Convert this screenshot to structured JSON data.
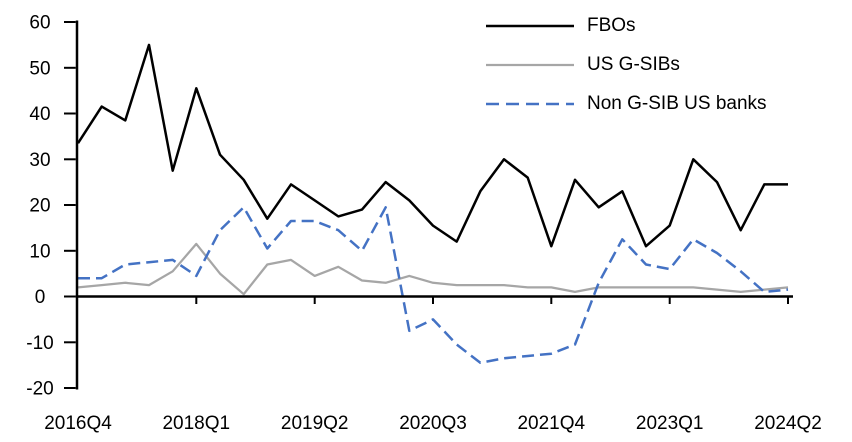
{
  "chart_data": {
    "type": "line",
    "title": "",
    "xlabel": "",
    "ylabel": "",
    "grid": false,
    "legend_position": "top-right",
    "background": "#ffffff",
    "axis_color": "#000000",
    "ylim": [
      -20,
      60
    ],
    "y_ticks": [
      60,
      50,
      40,
      30,
      20,
      10,
      0,
      -10,
      -20
    ],
    "x_ticks": [
      {
        "index": 0,
        "label": "2016Q4"
      },
      {
        "index": 5,
        "label": "2018Q1"
      },
      {
        "index": 10,
        "label": "2019Q2"
      },
      {
        "index": 15,
        "label": "2020Q3"
      },
      {
        "index": 20,
        "label": "2021Q4"
      },
      {
        "index": 25,
        "label": "2023Q1"
      },
      {
        "index": 30,
        "label": "2024Q2"
      }
    ],
    "categories": [
      "2016Q4",
      "2017Q1",
      "2017Q2",
      "2017Q3",
      "2017Q4",
      "2018Q1",
      "2018Q2",
      "2018Q3",
      "2018Q4",
      "2019Q1",
      "2019Q2",
      "2019Q3",
      "2019Q4",
      "2020Q1",
      "2020Q2",
      "2020Q3",
      "2020Q4",
      "2021Q1",
      "2021Q2",
      "2021Q3",
      "2021Q4",
      "2022Q1",
      "2022Q2",
      "2022Q3",
      "2022Q4",
      "2023Q1",
      "2023Q2",
      "2023Q3",
      "2023Q4",
      "2024Q1",
      "2024Q2"
    ],
    "series": [
      {
        "id": "fbos",
        "name": "FBOs",
        "color": "#000000",
        "width": 2.5,
        "dash": "none",
        "legend_dash": "none",
        "values": [
          33.5,
          41.5,
          38.5,
          55,
          27.5,
          45.5,
          31,
          25.5,
          17,
          24.5,
          21,
          17.5,
          19,
          25,
          21,
          15.5,
          12,
          23,
          30,
          26,
          11,
          25.5,
          19.5,
          23,
          11,
          15.5,
          30,
          25,
          14.5,
          24.5,
          24.5
        ]
      },
      {
        "id": "us-gsibs",
        "name": "US G-SIBs",
        "color": "#a6a6a6",
        "width": 2.25,
        "dash": "none",
        "legend_dash": "none",
        "values": [
          2,
          2.5,
          3,
          2.5,
          5.5,
          11.5,
          5,
          0.5,
          7,
          8,
          4.5,
          6.5,
          3.5,
          3,
          4.5,
          3,
          2.5,
          2.5,
          2.5,
          2,
          2,
          1,
          2,
          2,
          2,
          2,
          2,
          1.5,
          1,
          1.5,
          2
        ]
      },
      {
        "id": "non-gsib-us-banks",
        "name": "Non G-SIB US banks",
        "color": "#4472c4",
        "width": 2.5,
        "dash": "12 6",
        "legend_dash": "13 7",
        "values": [
          4,
          4,
          7,
          7.5,
          8,
          4.5,
          14.5,
          19.5,
          10.5,
          16.5,
          16.5,
          14.5,
          10,
          19.5,
          -7.5,
          -5,
          -10.5,
          -14.5,
          -13.5,
          -13,
          -12.5,
          -10.5,
          3,
          12.5,
          7,
          6,
          12.5,
          9.5,
          5.5,
          1,
          1.5
        ]
      }
    ]
  }
}
